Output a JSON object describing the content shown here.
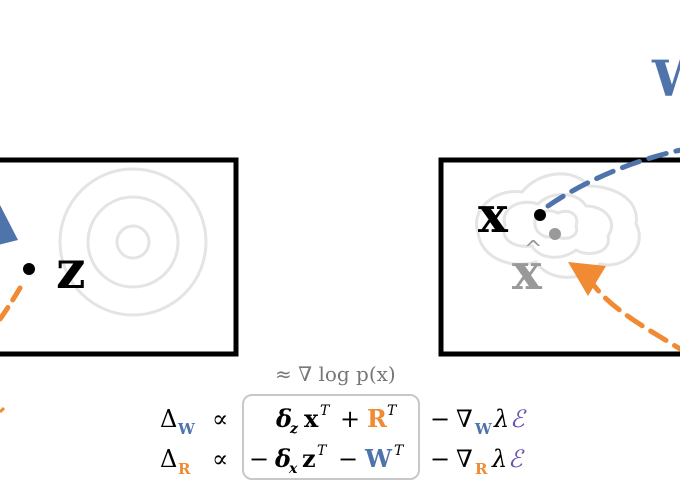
{
  "colors": {
    "blue": "#4f74ac",
    "orange": "#f08a33",
    "gray": "#999999",
    "light_gray": "#e4e4e4",
    "black": "#000000",
    "purple": "#6b4fae"
  },
  "labels": {
    "latent_z": "z",
    "data_x": "x",
    "recon_x": "x",
    "recon_hat": "^",
    "top_right_letter": "W",
    "left_edge_orange": "-"
  },
  "equations": {
    "approx_note": "≈ ∇ log p(x)",
    "line1": {
      "delta": "Δ",
      "sub": "W",
      "propto": "∝",
      "box_a": "δ",
      "box_a_sub": "z",
      "box_b": "x",
      "box_b_sup": "T",
      "box_op": "+",
      "box_c": "R",
      "box_c_sup": "T",
      "tail_minus": "−",
      "tail_nabla": "∇",
      "tail_sub": "W",
      "tail_lambda": "λ",
      "tail_E": "ℰ"
    },
    "line2": {
      "delta": "Δ",
      "sub": "R",
      "propto": "∝",
      "box_lead": "−",
      "box_a": "δ",
      "box_a_sub": "x",
      "box_b": "z",
      "box_b_sup": "T",
      "box_op": "−",
      "box_c": "W",
      "box_c_sup": "T",
      "tail_minus": "−",
      "tail_nabla": "∇",
      "tail_sub": "R",
      "tail_lambda": "λ",
      "tail_E": "ℰ"
    }
  }
}
